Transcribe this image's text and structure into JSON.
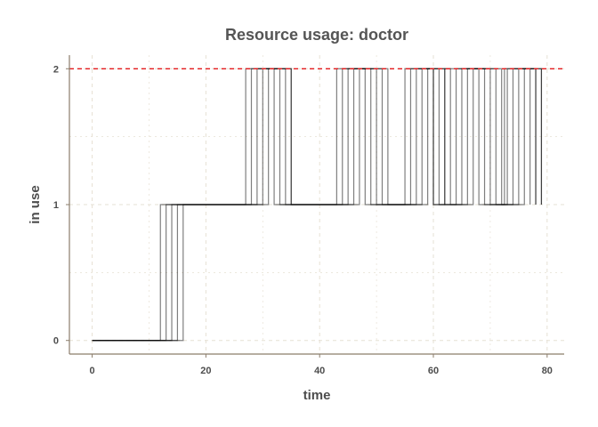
{
  "chart_data": {
    "type": "line",
    "title": "Resource usage: doctor",
    "xlabel": "time",
    "ylabel": "in use",
    "xlim": [
      -4,
      83
    ],
    "ylim": [
      -0.1,
      2.1
    ],
    "x_ticks": [
      "0",
      "20",
      "40",
      "60",
      "80"
    ],
    "x_tick_values": [
      0,
      20,
      40,
      60,
      80
    ],
    "y_ticks": [
      "0",
      "1",
      "2"
    ],
    "y_tick_values": [
      0,
      1,
      2
    ],
    "grid": true,
    "capacity_line": {
      "y": 2,
      "color": "#e31a1c",
      "style": "dashed"
    },
    "step_color": "#000000",
    "series": [
      {
        "steps": [
          [
            0,
            0
          ],
          [
            12,
            1
          ],
          [
            27,
            2
          ],
          [
            35,
            1
          ],
          [
            44,
            2
          ],
          [
            52,
            1
          ],
          [
            56,
            2
          ],
          [
            60,
            1
          ],
          [
            62,
            2
          ],
          [
            70,
            1
          ],
          [
            74,
            2
          ],
          [
            79,
            1
          ]
        ]
      },
      {
        "steps": [
          [
            0,
            0
          ],
          [
            13,
            1
          ],
          [
            28,
            2
          ],
          [
            34,
            1
          ],
          [
            43,
            2
          ],
          [
            51,
            1
          ],
          [
            57,
            2
          ],
          [
            63,
            1
          ],
          [
            67,
            2
          ],
          [
            69,
            1
          ],
          [
            75,
            2
          ],
          [
            78,
            1
          ]
        ]
      },
      {
        "steps": [
          [
            0,
            0
          ],
          [
            14,
            1
          ],
          [
            29,
            2
          ],
          [
            33,
            1
          ],
          [
            45,
            2
          ],
          [
            50,
            1
          ],
          [
            58,
            2
          ],
          [
            61,
            1
          ],
          [
            64,
            2
          ],
          [
            68,
            1
          ],
          [
            73,
            2
          ],
          [
            77,
            1
          ]
        ]
      },
      {
        "steps": [
          [
            0,
            0
          ],
          [
            15,
            1
          ],
          [
            30,
            2
          ],
          [
            32,
            1
          ],
          [
            46,
            2
          ],
          [
            49,
            1
          ],
          [
            55,
            2
          ],
          [
            62,
            1
          ],
          [
            65,
            2
          ],
          [
            71,
            1
          ],
          [
            76,
            2
          ],
          [
            79,
            1
          ]
        ]
      },
      {
        "steps": [
          [
            0,
            0
          ],
          [
            16,
            1
          ],
          [
            31,
            2
          ],
          [
            35,
            1
          ],
          [
            47,
            2
          ],
          [
            48,
            1
          ],
          [
            59,
            2
          ],
          [
            60,
            1
          ],
          [
            66,
            2
          ],
          [
            72,
            1
          ],
          [
            72.5,
            2
          ],
          [
            78,
            1
          ]
        ]
      }
    ]
  }
}
